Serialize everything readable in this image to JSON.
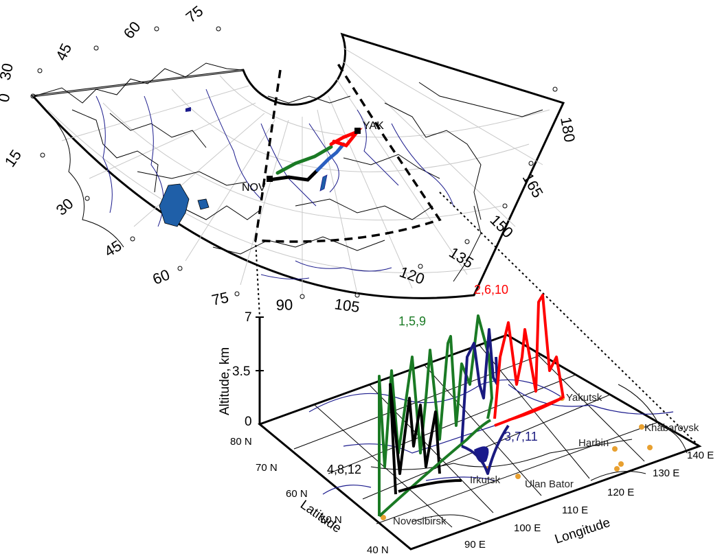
{
  "map": {
    "station_labels": [
      "YAK",
      "NOV"
    ],
    "longitude_ticks": [
      "0",
      "15",
      "30",
      "45",
      "60",
      "75",
      "90",
      "105",
      "120",
      "135",
      "150",
      "165",
      "180"
    ],
    "latitude_ticks": [
      "30",
      "45",
      "60",
      "75"
    ],
    "degree_mark": "°"
  },
  "inset": {
    "altitude_axis_label": "Altitude, km",
    "altitude_ticks": [
      "0",
      "3.5",
      "7"
    ],
    "latitude_axis_label": "Latitude",
    "latitude_ticks": [
      "80 N",
      "70 N",
      "60 N",
      "50 N",
      "40 N"
    ],
    "longitude_axis_label": "Longitude",
    "longitude_ticks": [
      "90 E",
      "100 E",
      "110 E",
      "120 E",
      "130 E",
      "140 E"
    ],
    "cities": [
      "Yakutsk",
      "Khabarovsk",
      "Harbin",
      "Irkutsk",
      "Ulan Bator",
      "Novosibirsk"
    ]
  },
  "flights": [
    {
      "label": "1,5,9",
      "color": "#1a7a24"
    },
    {
      "label": "2,6,10",
      "color": "#ff0000"
    },
    {
      "label": "3,7,11",
      "color": "#1a1a80"
    },
    {
      "label": "4,8,12",
      "color": "#000000"
    }
  ],
  "colors": {
    "water": "#1f5fa8",
    "rivers": "#1a1a8c",
    "grid": "#c8c8c8",
    "city_dot": "#e8a030"
  }
}
